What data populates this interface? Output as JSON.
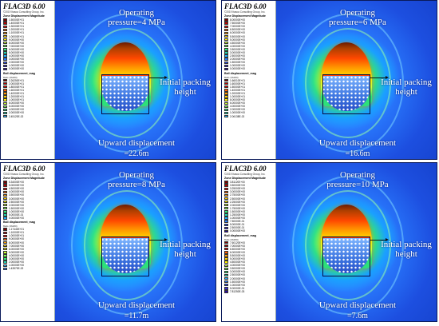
{
  "panels": [
    {
      "id": "p1",
      "brand": "FLAC3D 6.00",
      "company": "©2019 Itasca Consulting Group, Inc.",
      "contour_title": "Zone Displacement Magnitude",
      "contour_values": [
        "1.50000E+01",
        "1.40000E+01",
        "1.30000E+01",
        "1.20000E+01",
        "1.10000E+01",
        "1.00000E+01",
        "9.00000E+00",
        "8.00000E+00",
        "7.00000E+00",
        "6.00000E+00",
        "5.00000E+00",
        "4.00000E+00",
        "3.00000E+00",
        "2.00000E+00",
        "1.00000E+00",
        "0.00000E+00"
      ],
      "ball_title": "Ball displacement_mag",
      "ball_sub": "Balls (36480)",
      "ball_values": [
        "2.26250E+01",
        "2.00000E+01",
        "1.80000E+01",
        "1.60000E+01",
        "1.40000E+01",
        "1.20000E+01",
        "1.00000E+01",
        "8.00000E+00",
        "6.00000E+00",
        "4.00000E+00",
        "2.00000E+00",
        "2.45120E-02"
      ],
      "operating_line1": "Operating",
      "operating_line2": "pressure=4 MPa",
      "init_line1": "Initial packing",
      "init_line2": "height",
      "upward_line1": "Upward displacement",
      "upward_line2": "=22.6m"
    },
    {
      "id": "p2",
      "brand": "FLAC3D 6.00",
      "company": "©2019 Itasca Consulting Group, Inc.",
      "contour_title": "Zone Displacement Magnitude",
      "contour_values": [
        "8.00000E+00",
        "7.50000E+00",
        "7.00000E+00",
        "6.50000E+00",
        "6.00000E+00",
        "5.50000E+00",
        "5.00000E+00",
        "4.50000E+00",
        "4.00000E+00",
        "3.50000E+00",
        "3.00000E+00",
        "2.50000E+00",
        "2.00000E+00",
        "1.50000E+00",
        "1.00000E+00",
        "0.00000E+00"
      ],
      "ball_title": "Ball displacement_mag",
      "ball_sub": "Balls (36480)",
      "ball_values": [
        "1.66010E+01",
        "1.60000E+01",
        "1.50000E+01",
        "1.40000E+01",
        "1.20000E+01",
        "1.00000E+01",
        "8.00000E+00",
        "6.00000E+00",
        "4.00000E+00",
        "2.00000E+00",
        "1.00000E+00",
        "2.06138E-02"
      ],
      "operating_line1": "Operating",
      "operating_line2": "pressure=6 MPa",
      "init_line1": "Initial packing",
      "init_line2": "height",
      "upward_line1": "Upward displacement",
      "upward_line2": "=16.6m"
    },
    {
      "id": "p3",
      "brand": "FLAC3D 6.00",
      "company": "©2019 Itasca Consulting Group, Inc.",
      "contour_title": "Zone Displacement Magnitude",
      "contour_values": [
        "5.34000E+00",
        "5.00000E+00",
        "4.50000E+00",
        "4.00000E+00",
        "3.50000E+00",
        "3.00000E+00",
        "2.50000E+00",
        "2.00000E+00",
        "1.50000E+00",
        "1.00000E+00",
        "5.00000E-01",
        "0.00000E+00"
      ],
      "ball_title": "Ball displacement_mag",
      "ball_sub": "Balls (36480)",
      "ball_values": [
        "1.17440E+01",
        "1.10000E+01",
        "1.00000E+01",
        "9.00000E+00",
        "8.00000E+00",
        "7.00000E+00",
        "6.00000E+00",
        "5.00000E+00",
        "4.00000E+00",
        "3.00000E+00",
        "2.00000E+00",
        "1.00000E+00",
        "1.43570E-02"
      ],
      "operating_line1": "Operating",
      "operating_line2": "pressure=8 MPa",
      "init_line1": "Initial packing",
      "init_line2": "height",
      "upward_line1": "Upward displacement",
      "upward_line2": "=11.7m"
    },
    {
      "id": "p4",
      "brand": "FLAC3D 6.00",
      "company": "©2019 Itasca Consulting Group, Inc.",
      "contour_title": "Zone Displacement Magnitude",
      "contour_values": [
        "3.81120E+00",
        "3.50000E+00",
        "3.25000E+00",
        "3.00000E+00",
        "2.75000E+00",
        "2.50000E+00",
        "2.25000E+00",
        "2.00000E+00",
        "1.75000E+00",
        "1.50000E+00",
        "1.25000E+00",
        "1.00000E+00",
        "7.50000E-01",
        "5.00000E-01",
        "2.50000E-01",
        "0.00000E+00"
      ],
      "ball_title": "Ball displacement_mag",
      "ball_sub": "Balls (36480)",
      "ball_values": [
        "7.60120E+00",
        "7.00000E+00",
        "6.50000E+00",
        "6.00000E+00",
        "5.50000E+00",
        "5.00000E+00",
        "4.50000E+00",
        "4.00000E+00",
        "3.50000E+00",
        "3.00000E+00",
        "2.50000E+00",
        "2.00000E+00",
        "1.50000E+00",
        "1.00000E+00",
        "5.00000E-01",
        "7.81250E-03"
      ],
      "operating_line1": "Operating",
      "operating_line2": "pressure=10 MPa",
      "init_line1": "Initial packing",
      "init_line2": "height",
      "upward_line1": "Upward displacement",
      "upward_line2": "=7.6m"
    }
  ],
  "colors": {
    "scale": [
      "#7a0000",
      "#b40000",
      "#ff0000",
      "#ff5a00",
      "#ff9a00",
      "#ffd000",
      "#fff200",
      "#c8ff30",
      "#7cff4a",
      "#30f07a",
      "#20d6b0",
      "#20b0ff",
      "#2a7cff",
      "#2a52ff",
      "#3a2ad8",
      "#2a0aa0"
    ]
  }
}
